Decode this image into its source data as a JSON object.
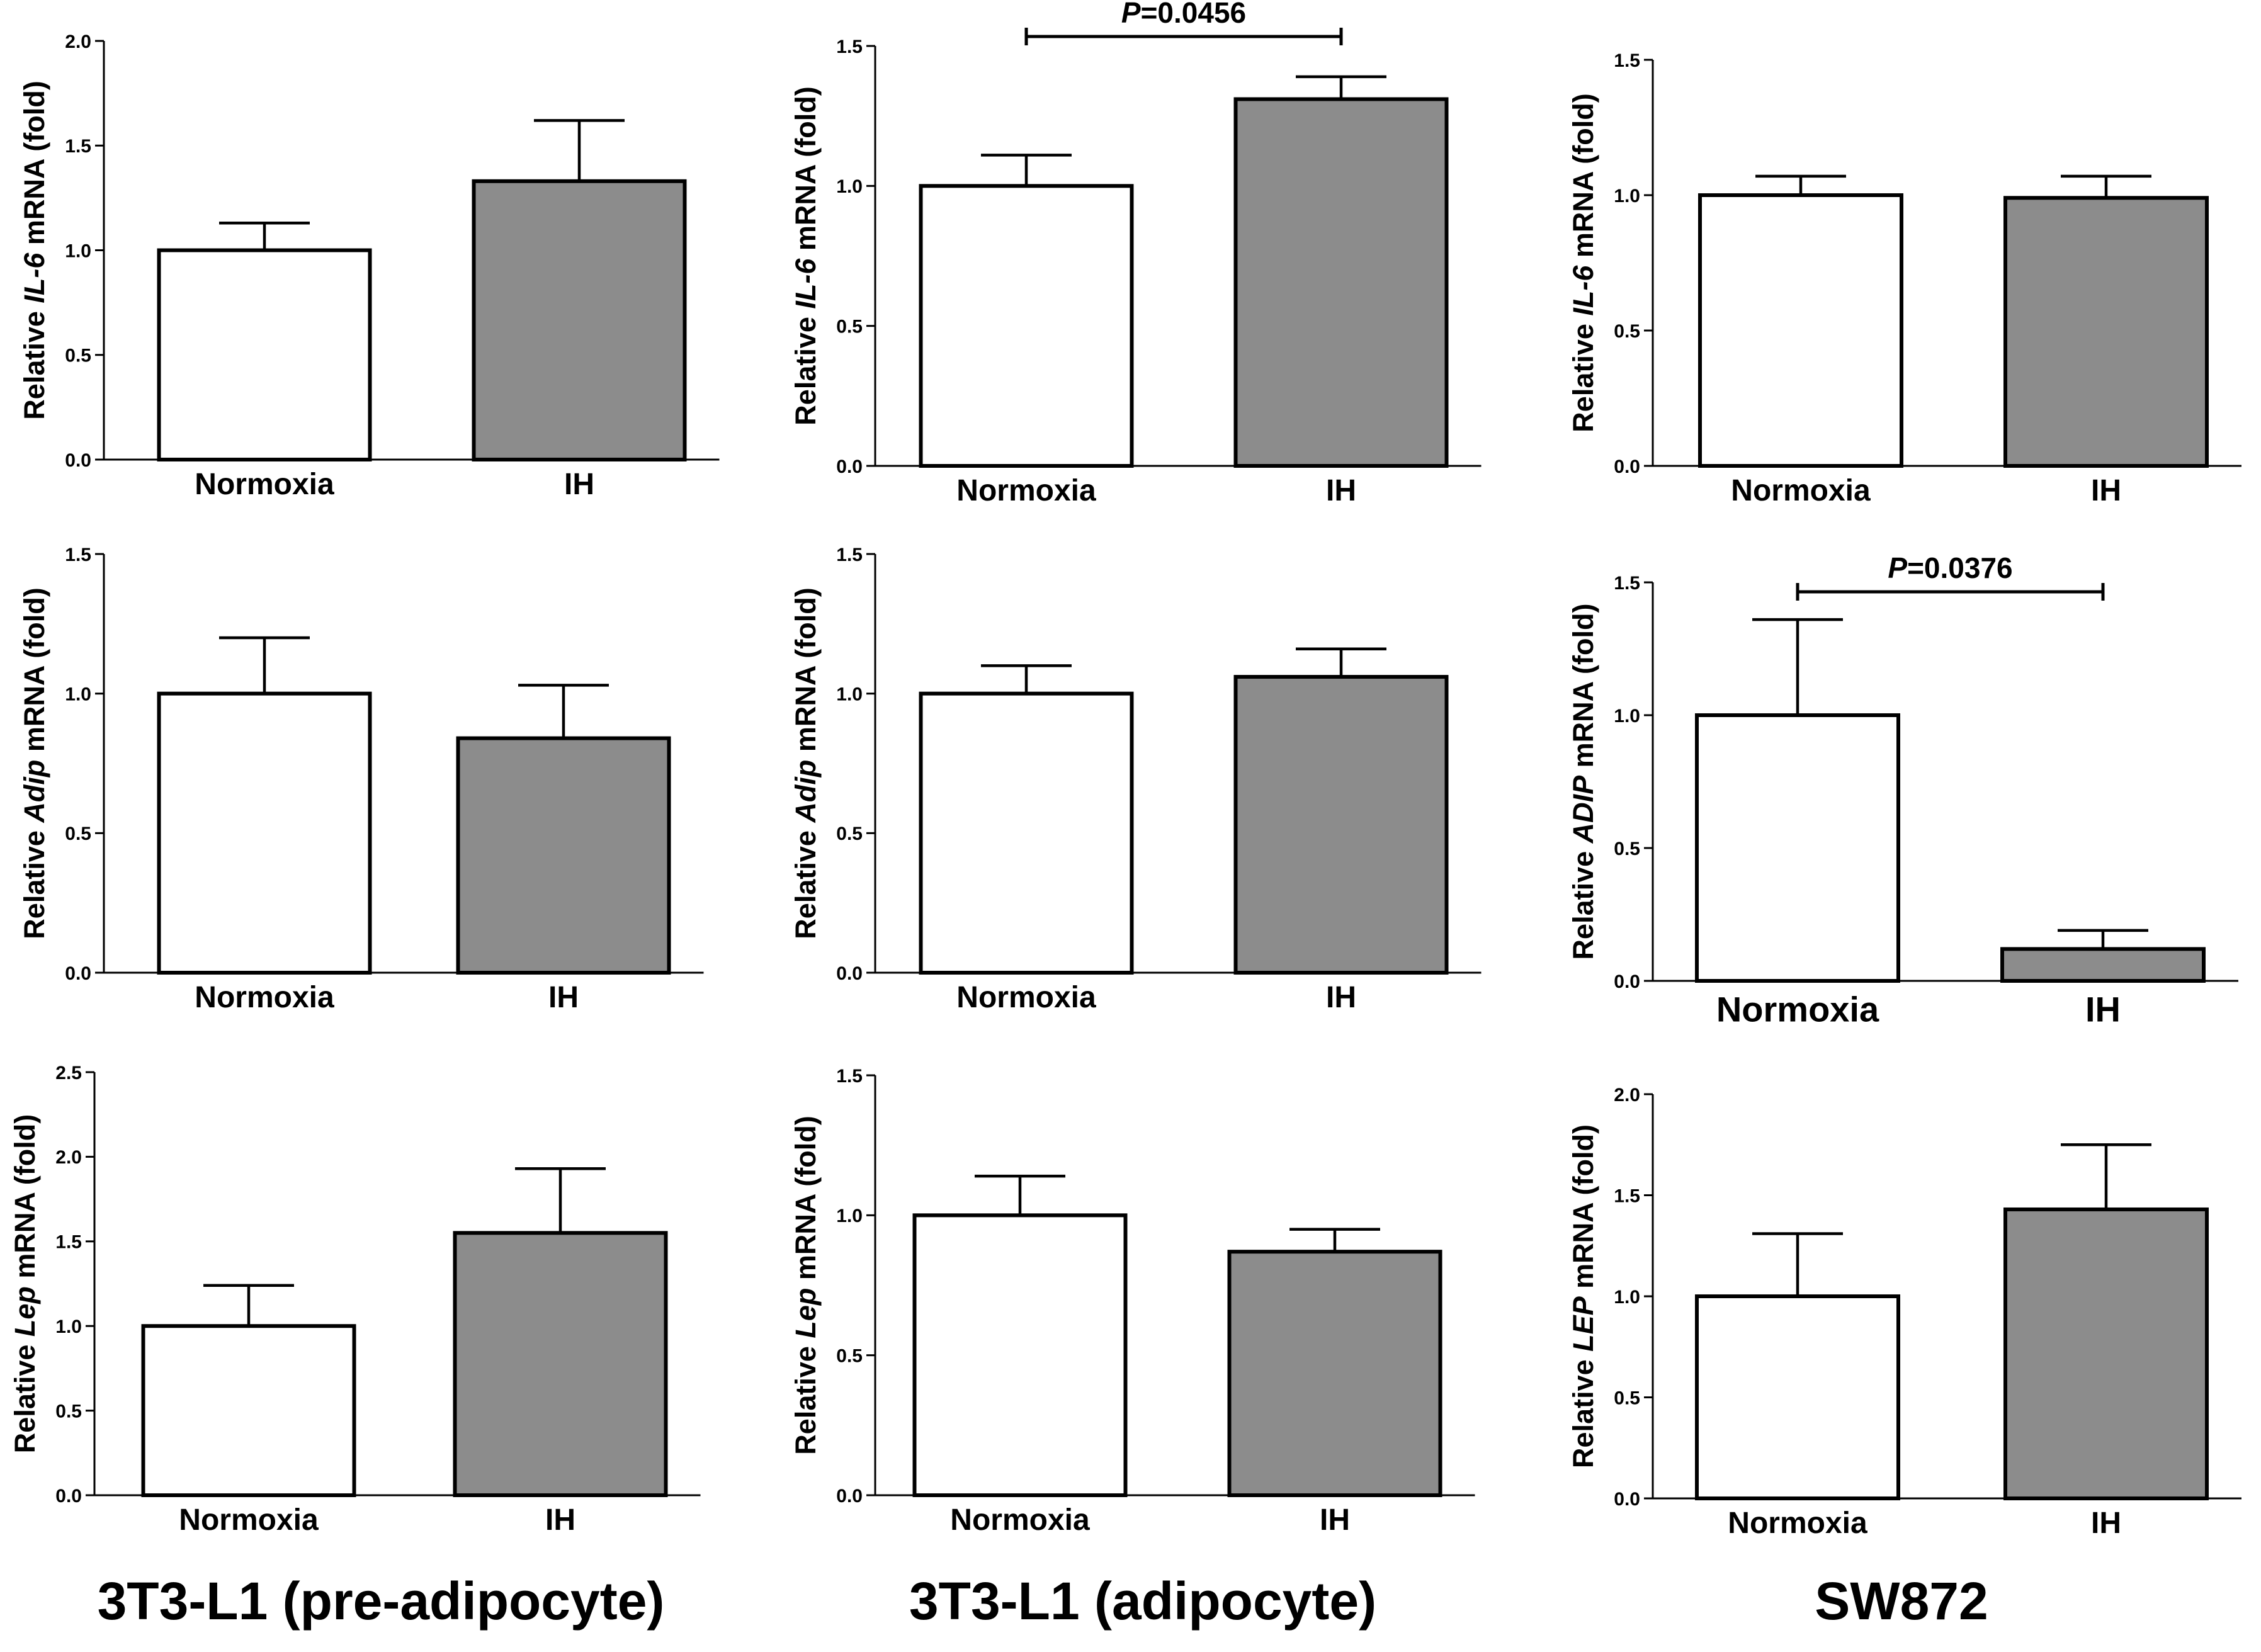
{
  "colors": {
    "normoxia_fill": "#ffffff",
    "ih_fill": "#8c8c8c",
    "axis": "#000000"
  },
  "columns": [
    {
      "label": "3T3-L1 (pre-adipocyte)"
    },
    {
      "label": "3T3-L1 (adipocyte)"
    },
    {
      "label": "SW872"
    }
  ],
  "chart_data": [
    {
      "id": "il6-pre",
      "type": "bar",
      "categories": [
        "Normoxia",
        "IH"
      ],
      "ylabel_prefix": "Relative ",
      "gene": "IL-6",
      "ylabel_suffix": " mRNA (fold)",
      "values": [
        1.0,
        1.33
      ],
      "errors": [
        0.13,
        0.29
      ],
      "ylim": [
        0,
        2.0
      ],
      "ticks": [
        0.0,
        0.5,
        1.0,
        1.5,
        2.0
      ],
      "tick_labels": [
        "0.0",
        "0.5",
        "1.0",
        "1.5",
        "2.0"
      ]
    },
    {
      "id": "il6-adi",
      "type": "bar",
      "categories": [
        "Normoxia",
        "IH"
      ],
      "ylabel_prefix": "Relative ",
      "gene": "IL-6",
      "ylabel_suffix": " mRNA (fold)",
      "values": [
        1.0,
        1.31
      ],
      "errors": [
        0.11,
        0.08
      ],
      "ylim": [
        0,
        1.5
      ],
      "ticks": [
        0.0,
        0.5,
        1.0,
        1.5
      ],
      "tick_labels": [
        "0.0",
        "0.5",
        "1.0",
        "1.5"
      ],
      "significance": {
        "p_italic": "P",
        "p_value": "=0.0456"
      }
    },
    {
      "id": "il6-sw",
      "type": "bar",
      "categories": [
        "Normoxia",
        "IH"
      ],
      "ylabel_prefix": "Relative ",
      "gene": "IL-6",
      "ylabel_suffix": " mRNA (fold)",
      "values": [
        1.0,
        0.99
      ],
      "errors": [
        0.07,
        0.08
      ],
      "ylim": [
        0,
        1.5
      ],
      "ticks": [
        0.0,
        0.5,
        1.0,
        1.5
      ],
      "tick_labels": [
        "0.0",
        "0.5",
        "1.0",
        "1.5"
      ]
    },
    {
      "id": "adip-pre",
      "type": "bar",
      "categories": [
        "Normoxia",
        "IH"
      ],
      "ylabel_prefix": "Relative ",
      "gene": "Adip",
      "ylabel_suffix": " mRNA (fold)",
      "values": [
        1.0,
        0.84
      ],
      "errors": [
        0.2,
        0.19
      ],
      "ylim": [
        0,
        1.5
      ],
      "ticks": [
        0.0,
        0.5,
        1.0,
        1.5
      ],
      "tick_labels": [
        "0.0",
        "0.5",
        "1.0",
        "1.5"
      ]
    },
    {
      "id": "adip-adi",
      "type": "bar",
      "categories": [
        "Normoxia",
        "IH"
      ],
      "ylabel_prefix": "Relative ",
      "gene": "Adip",
      "ylabel_suffix": " mRNA (fold)",
      "values": [
        1.0,
        1.06
      ],
      "errors": [
        0.1,
        0.1
      ],
      "ylim": [
        0,
        1.5
      ],
      "ticks": [
        0.0,
        0.5,
        1.0,
        1.5
      ],
      "tick_labels": [
        "0.0",
        "0.5",
        "1.0",
        "1.5"
      ]
    },
    {
      "id": "adip-sw",
      "type": "bar",
      "categories": [
        "Normoxia",
        "IH"
      ],
      "ylabel_prefix": "Relative ",
      "gene": "ADIP",
      "ylabel_suffix": " mRNA (fold)",
      "values": [
        1.0,
        0.12
      ],
      "errors": [
        0.36,
        0.07
      ],
      "ylim": [
        0,
        1.5
      ],
      "ticks": [
        0.0,
        0.5,
        1.0,
        1.5
      ],
      "tick_labels": [
        "0.0",
        "0.5",
        "1.0",
        "1.5"
      ],
      "significance": {
        "p_italic": "P",
        "p_value": "=0.0376"
      }
    },
    {
      "id": "lep-pre",
      "type": "bar",
      "categories": [
        "Normoxia",
        "IH"
      ],
      "ylabel_prefix": "Relative ",
      "gene": "Lep",
      "ylabel_suffix": " mRNA (fold)",
      "values": [
        1.0,
        1.55
      ],
      "errors": [
        0.24,
        0.38
      ],
      "ylim": [
        0,
        2.5
      ],
      "ticks": [
        0.0,
        0.5,
        1.0,
        1.5,
        2.0,
        2.5
      ],
      "tick_labels": [
        "0.0",
        "0.5",
        "1.0",
        "1.5",
        "2.0",
        "2.5"
      ]
    },
    {
      "id": "lep-adi",
      "type": "bar",
      "categories": [
        "Normoxia",
        "IH"
      ],
      "ylabel_prefix": "Relative ",
      "gene": "Lep",
      "ylabel_suffix": " mRNA (fold)",
      "values": [
        1.0,
        0.87
      ],
      "errors": [
        0.14,
        0.08
      ],
      "ylim": [
        0,
        1.5
      ],
      "ticks": [
        0.0,
        0.5,
        1.0,
        1.5
      ],
      "tick_labels": [
        "0.0",
        "0.5",
        "1.0",
        "1.5"
      ]
    },
    {
      "id": "lep-sw",
      "type": "bar",
      "categories": [
        "Normoxia",
        "IH"
      ],
      "ylabel_prefix": "Relative ",
      "gene": "LEP",
      "ylabel_suffix": " mRNA (fold)",
      "values": [
        1.0,
        1.43
      ],
      "errors": [
        0.31,
        0.32
      ],
      "ylim": [
        0,
        2.0
      ],
      "ticks": [
        0.0,
        0.5,
        1.0,
        1.5,
        2.0
      ],
      "tick_labels": [
        "0.0",
        "0.5",
        "1.0",
        "1.5",
        "2.0"
      ]
    }
  ]
}
